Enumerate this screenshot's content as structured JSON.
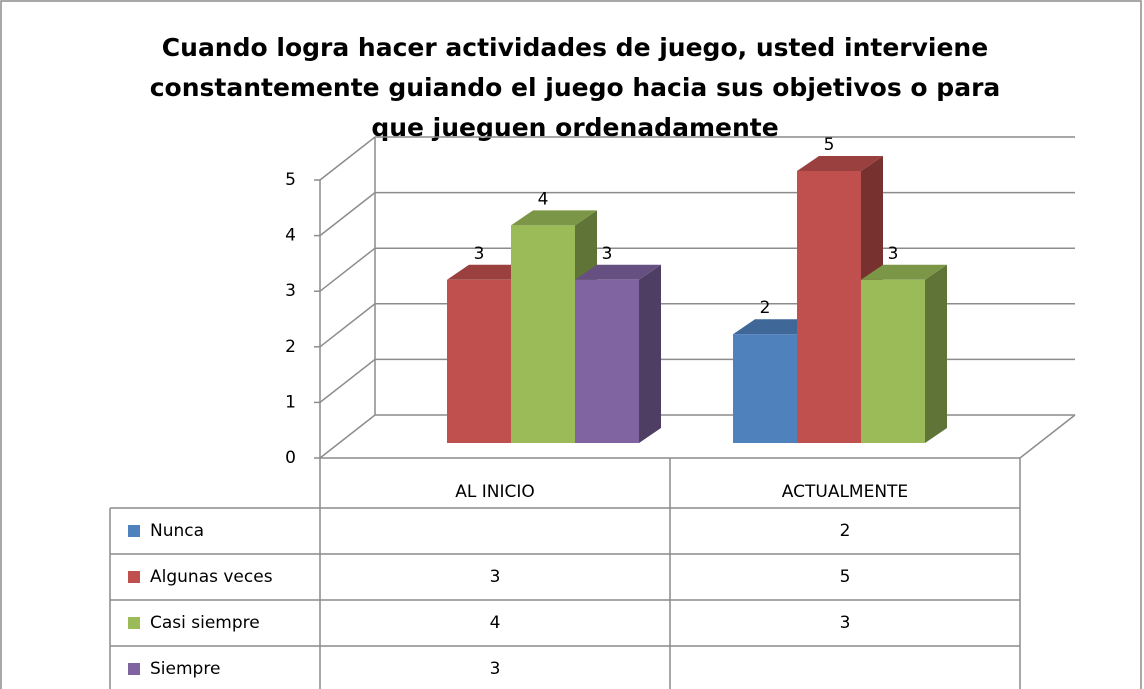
{
  "chart_data": {
    "type": "bar3d",
    "title": "Cuando logra hacer actividades de juego, usted interviene constantemente guiando el juego hacia sus objetivos o para que jueguen ordenadamente",
    "categories": [
      "AL INICIO",
      "ACTUALMENTE"
    ],
    "series": [
      {
        "name": "Nunca",
        "color": "#4f81bd",
        "values": [
          null,
          2
        ]
      },
      {
        "name": "Algunas veces",
        "color": "#c0504d",
        "values": [
          3,
          5
        ]
      },
      {
        "name": "Casi siempre",
        "color": "#9bbb59",
        "values": [
          4,
          3
        ]
      },
      {
        "name": "Siempre",
        "color": "#8064a2",
        "values": [
          3,
          null
        ]
      }
    ],
    "ylim": [
      0,
      5
    ],
    "yticks": [
      0,
      1,
      2,
      3,
      4,
      5
    ],
    "grid": true
  }
}
